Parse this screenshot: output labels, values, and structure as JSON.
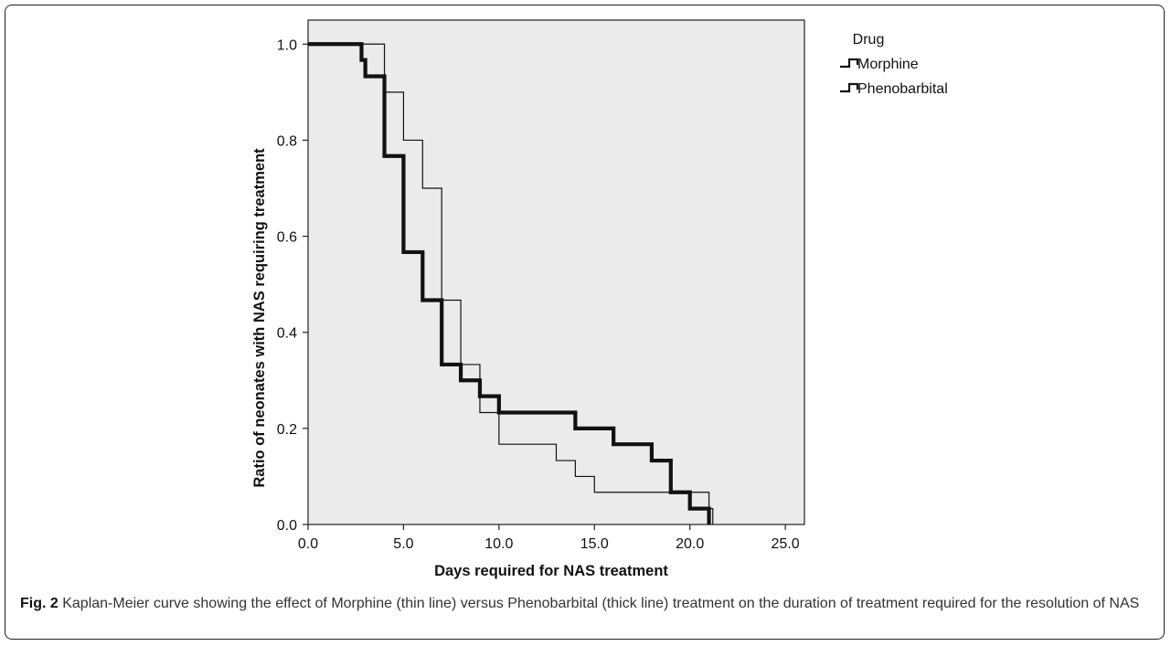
{
  "chart_data": {
    "type": "line",
    "step": true,
    "xlabel": "Days required for NAS treatment",
    "ylabel": "Ratio of neonates with NAS requiring treatment",
    "xlim": [
      0,
      26
    ],
    "ylim": [
      0,
      1.05
    ],
    "xticks": [
      "0.0",
      "5.0",
      "10.0",
      "15.0",
      "20.0",
      "25.0"
    ],
    "xtick_values": [
      0,
      5,
      10,
      15,
      20,
      25
    ],
    "yticks": [
      "0.0",
      "0.2",
      "0.4",
      "0.6",
      "0.8",
      "1.0"
    ],
    "ytick_values": [
      0,
      0.2,
      0.4,
      0.6,
      0.8,
      1.0
    ],
    "legend": {
      "title": "Drug",
      "position": "right-outside"
    },
    "plot_background": "#ebebeb",
    "series": [
      {
        "name": "Morphine",
        "line": "thin",
        "x": [
          0,
          4,
          5,
          6,
          7,
          8,
          9,
          10,
          13,
          14,
          15,
          21,
          21.2
        ],
        "y": [
          1.0,
          0.9,
          0.8,
          0.7,
          0.467,
          0.333,
          0.233,
          0.167,
          0.133,
          0.1,
          0.067,
          0.033,
          0.0
        ]
      },
      {
        "name": "Phenobarbital",
        "line": "thick",
        "x": [
          0,
          2.8,
          3,
          4,
          5,
          6,
          7,
          8,
          9,
          10,
          14,
          16,
          18,
          19,
          20,
          21
        ],
        "y": [
          1.0,
          0.967,
          0.933,
          0.767,
          0.567,
          0.467,
          0.333,
          0.3,
          0.267,
          0.233,
          0.2,
          0.167,
          0.133,
          0.067,
          0.033,
          0.0
        ]
      }
    ]
  },
  "caption": {
    "label": "Fig. 2",
    "text": " Kaplan-Meier curve showing the effect of Morphine (thin line) versus Phenobarbital (thick line) treatment on the duration of treatment required for the resolution of NAS"
  }
}
